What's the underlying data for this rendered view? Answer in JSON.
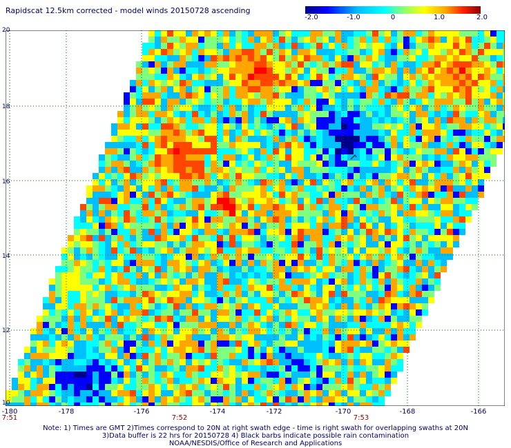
{
  "title": "Rapidscat 12.5km corrected - model winds 20150728 ascending",
  "colorbar": {
    "ticks": [
      "-2.0",
      "-1.0",
      "0",
      "1.0",
      "2.0"
    ],
    "colors": [
      "#00008b",
      "#0000ff",
      "#00bfff",
      "#00ffff",
      "#7fff7f",
      "#ffff00",
      "#ffa500",
      "#ff4500",
      "#ff0000",
      "#8b0000"
    ]
  },
  "map": {
    "lat_labels": [
      "20",
      "18",
      "16",
      "14",
      "12",
      "10"
    ],
    "lon_labels": [
      "-180",
      "-178",
      "-176",
      "-174",
      "-172",
      "-170",
      "-168",
      "-166"
    ],
    "time_labels": [
      "7:51",
      "7:52",
      "7:53"
    ],
    "grid_color": "#006400",
    "rain_flag_color": "#000000"
  },
  "notes": {
    "line1": "Note: 1) Times are GMT 2)Times correspond to 20N at right swath edge - time is right swath for overlapping swaths at 20N",
    "line2": "3)Data buffer is 22 hrs for 20150728 4) Black barbs indicate possible rain contamination",
    "line3": "NOAA/NESDIS/Office of Research and Applications"
  }
}
